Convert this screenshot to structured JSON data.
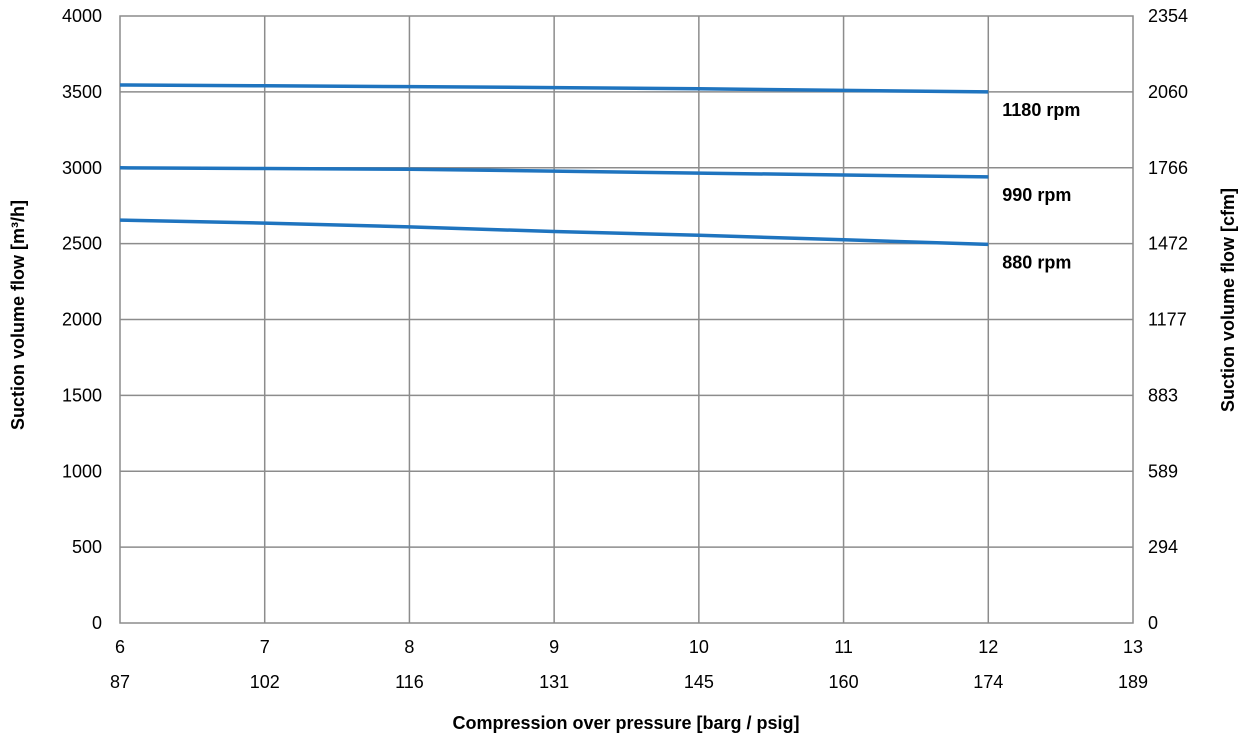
{
  "chart_data": {
    "type": "line",
    "xlabel": "Compression over pressure [barg / psig]",
    "ylabel": "Suction volume flow  [m³/h]",
    "y2label": "Suction volume flow [cfm]",
    "xlim": [
      6,
      13
    ],
    "ylim": [
      0,
      4000
    ],
    "x_ticks_barg": [
      "6",
      "7",
      "8",
      "9",
      "10",
      "11",
      "12",
      "13"
    ],
    "x_ticks_psig": [
      "87",
      "102",
      "116",
      "131",
      "145",
      "160",
      "174",
      "189"
    ],
    "y_ticks": [
      "0",
      "500",
      "1000",
      "1500",
      "2000",
      "2500",
      "3000",
      "3500",
      "4000"
    ],
    "y2_ticks": [
      "0",
      "294",
      "589",
      "883",
      "1177",
      "1472",
      "1766",
      "2060",
      "2354"
    ],
    "grid": true,
    "line_color": "#1f74bf",
    "series": [
      {
        "name": "1180 rpm",
        "x": [
          6,
          7,
          8,
          9,
          10,
          11,
          12
        ],
        "values": [
          3545,
          3540,
          3535,
          3528,
          3520,
          3510,
          3500
        ]
      },
      {
        "name": "990 rpm",
        "x": [
          6,
          7,
          8,
          9,
          10,
          11,
          12
        ],
        "values": [
          3000,
          2995,
          2990,
          2978,
          2965,
          2952,
          2940
        ]
      },
      {
        "name": "880 rpm",
        "x": [
          6,
          7,
          8,
          9,
          10,
          11,
          12
        ],
        "values": [
          2655,
          2635,
          2610,
          2580,
          2555,
          2525,
          2495
        ]
      }
    ]
  }
}
